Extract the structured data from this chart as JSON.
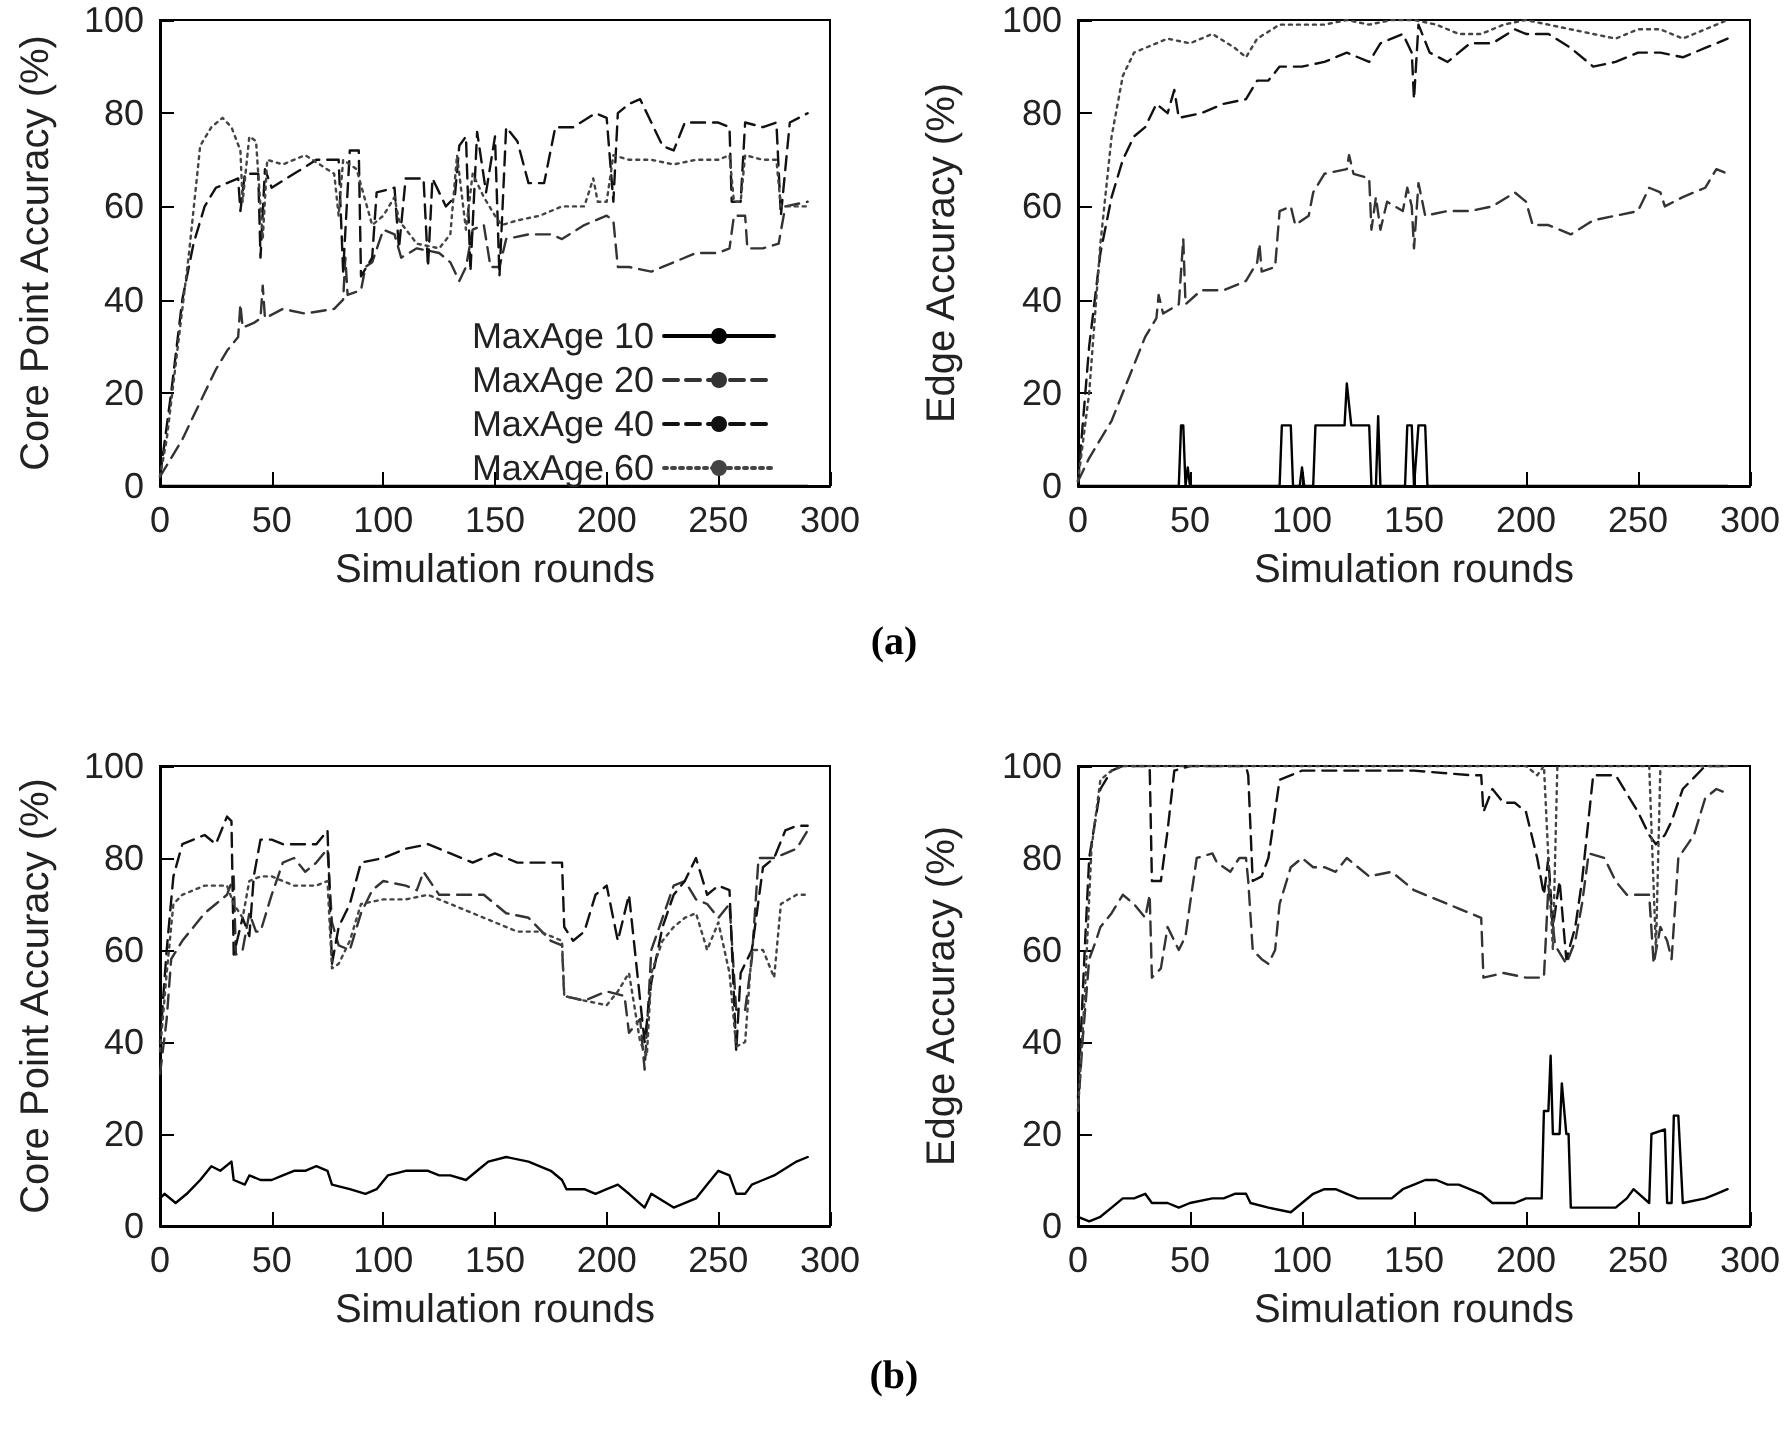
{
  "chart_data": [
    {
      "type": "line",
      "ylabel": "Core Point Accuracy (%)",
      "xlabel": "Simulation rounds",
      "xlim": [
        0,
        300
      ],
      "xticks": [
        0,
        50,
        100,
        150,
        200,
        250,
        300
      ],
      "ylim": [
        0,
        100
      ],
      "yticks": [
        0,
        20,
        40,
        60,
        80,
        100
      ],
      "grid": false,
      "legend": "bottom right",
      "annotations": [
        "(a)"
      ],
      "series": [
        {
          "name": "MaxAge 10",
          "color": "#000000",
          "line_style": "solid",
          "x": [
            0,
            290
          ],
          "values": [
            0,
            0
          ]
        },
        {
          "name": "MaxAge 20",
          "color": "#333333",
          "line_style": "dashed",
          "x": [
            0,
            5,
            10,
            15,
            20,
            25,
            30,
            35,
            36,
            37,
            42,
            45,
            46,
            47,
            55,
            65,
            78,
            82,
            83,
            84,
            90,
            92,
            95,
            100,
            105,
            108,
            115,
            125,
            130,
            134,
            137,
            140,
            145,
            148,
            152,
            155,
            165,
            175,
            180,
            190,
            200,
            203,
            205,
            210,
            220,
            230,
            240,
            250,
            255,
            257,
            262,
            263,
            270,
            277,
            280,
            290
          ],
          "values": [
            2,
            6,
            10,
            15,
            20,
            25,
            29,
            32,
            39,
            34,
            35,
            36,
            43,
            36,
            38,
            37,
            38,
            40,
            49,
            41,
            42,
            47,
            48,
            55,
            54,
            49,
            51,
            50,
            48,
            44,
            47,
            55,
            56,
            47,
            47,
            53,
            54,
            54,
            53,
            56,
            58,
            57,
            47,
            47,
            46,
            48,
            50,
            50,
            51,
            58,
            58,
            51,
            51,
            52,
            60,
            61
          ]
        },
        {
          "name": "MaxAge 40",
          "color": "#111111",
          "line_style": "dashed",
          "x": [
            0,
            5,
            10,
            15,
            20,
            25,
            30,
            35,
            36,
            38,
            44,
            45,
            47,
            50,
            60,
            70,
            80,
            82,
            85,
            89,
            90,
            95,
            97,
            105,
            107,
            110,
            118,
            120,
            122,
            128,
            132,
            134,
            137,
            139,
            142,
            146,
            150,
            152,
            155,
            160,
            165,
            172,
            177,
            185,
            195,
            200,
            203,
            205,
            210,
            215,
            220,
            225,
            230,
            235,
            245,
            250,
            255,
            256,
            260,
            262,
            270,
            276,
            278,
            282,
            290
          ],
          "values": [
            2,
            20,
            40,
            52,
            60,
            64,
            65,
            66,
            59,
            67,
            67,
            49,
            68,
            64,
            67,
            70,
            70,
            46,
            72,
            72,
            45,
            49,
            63,
            64,
            51,
            66,
            66,
            47,
            66,
            60,
            62,
            73,
            75,
            46,
            76,
            63,
            75,
            45,
            77,
            74,
            65,
            65,
            77,
            77,
            80,
            79,
            61,
            80,
            82,
            83,
            78,
            73,
            72,
            78,
            78,
            78,
            77,
            61,
            61,
            78,
            77,
            78,
            58,
            78,
            80
          ]
        },
        {
          "name": "MaxAge 60",
          "color": "#444444",
          "line_style": "dotted",
          "x": [
            0,
            3,
            8,
            13,
            18,
            23,
            28,
            32,
            36,
            37,
            40,
            43,
            46,
            48,
            55,
            65,
            78,
            80,
            82,
            88,
            95,
            100,
            105,
            107,
            115,
            125,
            130,
            133,
            137,
            140,
            145,
            150,
            153,
            160,
            170,
            180,
            190,
            194,
            196,
            200,
            203,
            210,
            220,
            230,
            240,
            250,
            255,
            257,
            260,
            262,
            270,
            276,
            278,
            285,
            290
          ],
          "values": [
            2,
            10,
            30,
            50,
            73,
            77,
            79,
            77,
            72,
            61,
            75,
            74,
            53,
            70,
            69,
            71,
            67,
            58,
            70,
            68,
            56,
            58,
            62,
            57,
            52,
            51,
            54,
            71,
            55,
            67,
            62,
            58,
            56,
            57,
            58,
            60,
            60,
            66,
            61,
            61,
            71,
            70,
            70,
            69,
            70,
            70,
            71,
            61,
            61,
            71,
            70,
            70,
            60,
            60,
            60
          ]
        }
      ]
    },
    {
      "type": "line",
      "ylabel": "Edge Accuracy (%)",
      "xlabel": "Simulation rounds",
      "xlim": [
        0,
        300
      ],
      "xticks": [
        0,
        50,
        100,
        150,
        200,
        250,
        300
      ],
      "ylim": [
        0,
        100
      ],
      "yticks": [
        0,
        20,
        40,
        60,
        80,
        100
      ],
      "grid": false,
      "series": [
        {
          "color": "#000000",
          "line_style": "solid",
          "x": [
            0,
            45,
            46,
            47,
            48,
            49,
            50,
            90,
            91,
            95,
            96,
            99,
            100,
            101,
            105,
            106,
            119,
            120,
            122,
            130,
            131,
            133,
            134,
            135,
            146,
            147,
            149,
            150,
            152,
            155,
            156,
            290
          ],
          "values": [
            0,
            0,
            13,
            13,
            0,
            4,
            0,
            0,
            13,
            13,
            0,
            0,
            4,
            0,
            0,
            13,
            13,
            22,
            13,
            13,
            0,
            0,
            15,
            0,
            0,
            13,
            13,
            0,
            13,
            13,
            0,
            0
          ]
        },
        {
          "color": "#333333",
          "line_style": "dashed",
          "x": [
            0,
            5,
            10,
            15,
            20,
            25,
            30,
            35,
            36,
            38,
            45,
            47,
            48,
            55,
            65,
            75,
            80,
            81,
            82,
            88,
            90,
            95,
            97,
            103,
            105,
            110,
            120,
            121,
            123,
            130,
            131,
            133,
            135,
            138,
            145,
            147,
            149,
            150,
            152,
            155,
            165,
            175,
            185,
            195,
            200,
            203,
            210,
            220,
            230,
            240,
            250,
            255,
            260,
            262,
            270,
            280,
            285,
            290
          ],
          "values": [
            1,
            6,
            10,
            14,
            20,
            26,
            32,
            36,
            41,
            37,
            39,
            53,
            39,
            42,
            42,
            44,
            48,
            52,
            46,
            47,
            59,
            60,
            56,
            58,
            63,
            67,
            68,
            71,
            67,
            66,
            55,
            62,
            55,
            61,
            59,
            64,
            60,
            51,
            65,
            58,
            59,
            59,
            60,
            63,
            61,
            56,
            56,
            54,
            57,
            58,
            59,
            64,
            63,
            60,
            62,
            64,
            68,
            67
          ]
        },
        {
          "color": "#111111",
          "line_style": "dashed",
          "x": [
            0,
            5,
            10,
            15,
            20,
            25,
            30,
            35,
            40,
            43,
            45,
            55,
            65,
            75,
            80,
            85,
            90,
            100,
            110,
            120,
            130,
            135,
            145,
            149,
            150,
            152,
            157,
            165,
            175,
            185,
            195,
            200,
            210,
            220,
            230,
            240,
            250,
            260,
            270,
            280,
            290
          ],
          "values": [
            1,
            30,
            50,
            62,
            70,
            75,
            77,
            82,
            80,
            85,
            79,
            80,
            82,
            83,
            87,
            87,
            90,
            90,
            91,
            93,
            91,
            95,
            97,
            93,
            83,
            99,
            93,
            91,
            95,
            95,
            98,
            97,
            97,
            94,
            90,
            91,
            93,
            93,
            92,
            94,
            96
          ]
        },
        {
          "color": "#444444",
          "line_style": "dotted",
          "x": [
            0,
            5,
            10,
            15,
            20,
            25,
            30,
            40,
            50,
            60,
            70,
            75,
            80,
            90,
            100,
            110,
            120,
            130,
            140,
            150,
            160,
            170,
            180,
            190,
            200,
            210,
            220,
            230,
            240,
            250,
            260,
            270,
            280,
            290
          ],
          "values": [
            1,
            20,
            52,
            75,
            88,
            93,
            94,
            96,
            95,
            97,
            94,
            92,
            96,
            99,
            99,
            99,
            100,
            99,
            100,
            100,
            99,
            97,
            97,
            99,
            100,
            99,
            98,
            97,
            96,
            98,
            98,
            96,
            98,
            100
          ]
        }
      ]
    },
    {
      "type": "line",
      "ylabel": "Core Point Accuracy (%)",
      "xlabel": "Simulation rounds",
      "xlim": [
        0,
        300
      ],
      "xticks": [
        0,
        50,
        100,
        150,
        200,
        250,
        300
      ],
      "ylim": [
        0,
        100
      ],
      "yticks": [
        0,
        20,
        40,
        60,
        80,
        100
      ],
      "grid": false,
      "annotations": [
        "(b)"
      ],
      "series": [
        {
          "color": "#000000",
          "line_style": "solid",
          "x": [
            0,
            2,
            7,
            12,
            18,
            23,
            27,
            32,
            33,
            38,
            40,
            45,
            50,
            55,
            60,
            65,
            70,
            75,
            77,
            85,
            92,
            97,
            102,
            110,
            120,
            125,
            130,
            137,
            142,
            147,
            155,
            165,
            175,
            180,
            182,
            190,
            195,
            200,
            205,
            210,
            217,
            220,
            230,
            240,
            245,
            250,
            255,
            258,
            262,
            265,
            270,
            275,
            285,
            290
          ],
          "values": [
            6,
            7,
            5,
            7,
            10,
            13,
            12,
            14,
            10,
            9,
            11,
            10,
            10,
            11,
            12,
            12,
            13,
            12,
            9,
            8,
            7,
            8,
            11,
            12,
            12,
            11,
            11,
            10,
            12,
            14,
            15,
            14,
            12,
            10,
            8,
            8,
            7,
            8,
            9,
            7,
            4,
            7,
            4,
            6,
            9,
            12,
            11,
            7,
            7,
            9,
            10,
            11,
            14,
            15
          ]
        },
        {
          "color": "#333333",
          "line_style": "dashed",
          "x": [
            0,
            3,
            5,
            10,
            15,
            20,
            25,
            30,
            33,
            34,
            37,
            40,
            43,
            45,
            50,
            55,
            60,
            65,
            70,
            75,
            77,
            80,
            85,
            90,
            95,
            100,
            110,
            115,
            118,
            125,
            135,
            145,
            155,
            165,
            175,
            180,
            181,
            190,
            200,
            208,
            210,
            215,
            217,
            220,
            225,
            230,
            235,
            240,
            245,
            250,
            255,
            258,
            262,
            265,
            268,
            275,
            285,
            290
          ],
          "values": [
            33,
            45,
            58,
            62,
            65,
            68,
            70,
            72,
            76,
            59,
            60,
            68,
            64,
            64,
            72,
            79,
            80,
            77,
            79,
            82,
            66,
            61,
            60,
            68,
            73,
            75,
            74,
            73,
            77,
            72,
            72,
            72,
            68,
            67,
            62,
            61,
            50,
            49,
            51,
            50,
            42,
            45,
            34,
            60,
            67,
            74,
            75,
            71,
            70,
            67,
            70,
            47,
            47,
            58,
            80,
            80,
            82,
            86
          ]
        },
        {
          "color": "#111111",
          "line_style": "dashed",
          "x": [
            0,
            3,
            6,
            10,
            15,
            20,
            25,
            30,
            32,
            33,
            37,
            40,
            42,
            45,
            50,
            55,
            65,
            70,
            75,
            77,
            80,
            85,
            90,
            100,
            110,
            120,
            130,
            140,
            150,
            160,
            170,
            180,
            181,
            185,
            190,
            195,
            200,
            205,
            210,
            215,
            217,
            220,
            225,
            230,
            235,
            240,
            245,
            250,
            255,
            258,
            260,
            265,
            270,
            275,
            280,
            285,
            290
          ],
          "values": [
            40,
            60,
            76,
            83,
            84,
            85,
            83,
            89,
            88,
            59,
            67,
            63,
            76,
            84,
            84,
            83,
            83,
            83,
            86,
            57,
            65,
            70,
            79,
            80,
            82,
            83,
            81,
            79,
            81,
            79,
            79,
            79,
            65,
            62,
            64,
            72,
            74,
            62,
            72,
            49,
            40,
            53,
            65,
            72,
            75,
            80,
            72,
            74,
            73,
            38,
            55,
            60,
            78,
            80,
            86,
            87,
            87
          ]
        },
        {
          "color": "#444444",
          "line_style": "dotted",
          "x": [
            0,
            3,
            6,
            10,
            15,
            20,
            25,
            30,
            33,
            37,
            40,
            45,
            50,
            55,
            60,
            70,
            75,
            77,
            80,
            85,
            90,
            100,
            110,
            120,
            130,
            140,
            150,
            160,
            170,
            180,
            181,
            190,
            200,
            205,
            210,
            215,
            218,
            220,
            225,
            230,
            235,
            240,
            245,
            250,
            255,
            258,
            262,
            265,
            270,
            275,
            278,
            285,
            290
          ],
          "values": [
            38,
            55,
            70,
            72,
            73,
            74,
            74,
            74,
            70,
            67,
            75,
            76,
            76,
            75,
            74,
            74,
            75,
            56,
            57,
            62,
            70,
            71,
            71,
            72,
            70,
            68,
            66,
            64,
            64,
            62,
            50,
            49,
            48,
            51,
            55,
            40,
            37,
            55,
            62,
            65,
            67,
            68,
            60,
            66,
            55,
            39,
            40,
            60,
            60,
            54,
            70,
            72,
            72
          ]
        }
      ]
    },
    {
      "type": "line",
      "ylabel": "Edge Accuracy (%)",
      "xlabel": "Simulation rounds",
      "xlim": [
        0,
        300
      ],
      "xticks": [
        0,
        50,
        100,
        150,
        200,
        250,
        300
      ],
      "ylim": [
        0,
        100
      ],
      "yticks": [
        0,
        20,
        40,
        60,
        80,
        100
      ],
      "grid": false,
      "series": [
        {
          "color": "#000000",
          "line_style": "solid",
          "x": [
            0,
            5,
            10,
            15,
            20,
            25,
            30,
            33,
            40,
            45,
            50,
            60,
            65,
            70,
            75,
            77,
            85,
            95,
            100,
            105,
            110,
            115,
            120,
            125,
            130,
            135,
            140,
            145,
            150,
            155,
            160,
            165,
            170,
            180,
            185,
            190,
            195,
            200,
            207,
            208,
            210,
            211,
            212,
            215,
            216,
            218,
            219,
            220,
            230,
            240,
            245,
            248,
            255,
            256,
            262,
            263,
            265,
            266,
            268,
            270,
            280,
            285,
            290
          ],
          "values": [
            2,
            1,
            2,
            4,
            6,
            6,
            7,
            5,
            5,
            4,
            5,
            6,
            6,
            7,
            7,
            5,
            4,
            3,
            5,
            7,
            8,
            8,
            7,
            6,
            6,
            6,
            6,
            8,
            9,
            10,
            10,
            9,
            9,
            7,
            5,
            5,
            5,
            6,
            6,
            25,
            25,
            37,
            20,
            20,
            31,
            20,
            20,
            4,
            4,
            4,
            6,
            8,
            5,
            20,
            21,
            5,
            5,
            24,
            24,
            5,
            6,
            7,
            8
          ]
        },
        {
          "color": "#333333",
          "line_style": "dashed",
          "x": [
            0,
            2,
            5,
            8,
            10,
            15,
            20,
            25,
            30,
            32,
            33,
            37,
            40,
            45,
            48,
            50,
            53,
            60,
            62,
            68,
            72,
            75,
            76,
            78,
            82,
            85,
            88,
            90,
            95,
            100,
            105,
            110,
            115,
            120,
            130,
            140,
            150,
            160,
            170,
            175,
            180,
            181,
            190,
            200,
            208,
            210,
            213,
            218,
            222,
            225,
            228,
            235,
            240,
            245,
            255,
            257,
            260,
            263,
            265,
            268,
            275,
            280,
            285,
            290
          ],
          "values": [
            25,
            40,
            58,
            62,
            65,
            68,
            72,
            70,
            67,
            72,
            54,
            56,
            65,
            60,
            63,
            70,
            80,
            81,
            79,
            77,
            80,
            80,
            75,
            60,
            58,
            57,
            60,
            70,
            78,
            80,
            78,
            78,
            77,
            80,
            76,
            77,
            73,
            71,
            69,
            68,
            67,
            54,
            55,
            54,
            54,
            74,
            61,
            57,
            62,
            70,
            81,
            80,
            75,
            72,
            72,
            57,
            65,
            62,
            58,
            80,
            85,
            93,
            95,
            94
          ]
        },
        {
          "color": "#111111",
          "line_style": "dashed",
          "x": [
            0,
            3,
            5,
            10,
            15,
            20,
            30,
            32,
            33,
            37,
            40,
            43,
            50,
            60,
            75,
            76,
            78,
            82,
            85,
            90,
            100,
            120,
            150,
            175,
            180,
            181,
            185,
            190,
            195,
            200,
            205,
            208,
            210,
            212,
            215,
            218,
            222,
            225,
            230,
            240,
            250,
            255,
            258,
            262,
            265,
            270,
            280,
            290
          ],
          "values": [
            28,
            60,
            80,
            95,
            99,
            100,
            100,
            100,
            75,
            75,
            86,
            99,
            100,
            100,
            100,
            98,
            75,
            76,
            80,
            97,
            99,
            99,
            99,
            98,
            98,
            90,
            95,
            92,
            92,
            90,
            80,
            72,
            80,
            65,
            75,
            58,
            65,
            75,
            98,
            98,
            90,
            85,
            83,
            85,
            88,
            95,
            100,
            100
          ]
        },
        {
          "color": "#444444",
          "line_style": "dotted",
          "x": [
            0,
            3,
            6,
            10,
            15,
            20,
            50,
            100,
            150,
            200,
            205,
            208,
            212,
            214,
            215,
            255,
            258,
            260,
            290
          ],
          "values": [
            25,
            50,
            82,
            97,
            99,
            100,
            100,
            100,
            100,
            100,
            98,
            100,
            60,
            100,
            100,
            100,
            60,
            100,
            100
          ]
        }
      ]
    }
  ]
}
